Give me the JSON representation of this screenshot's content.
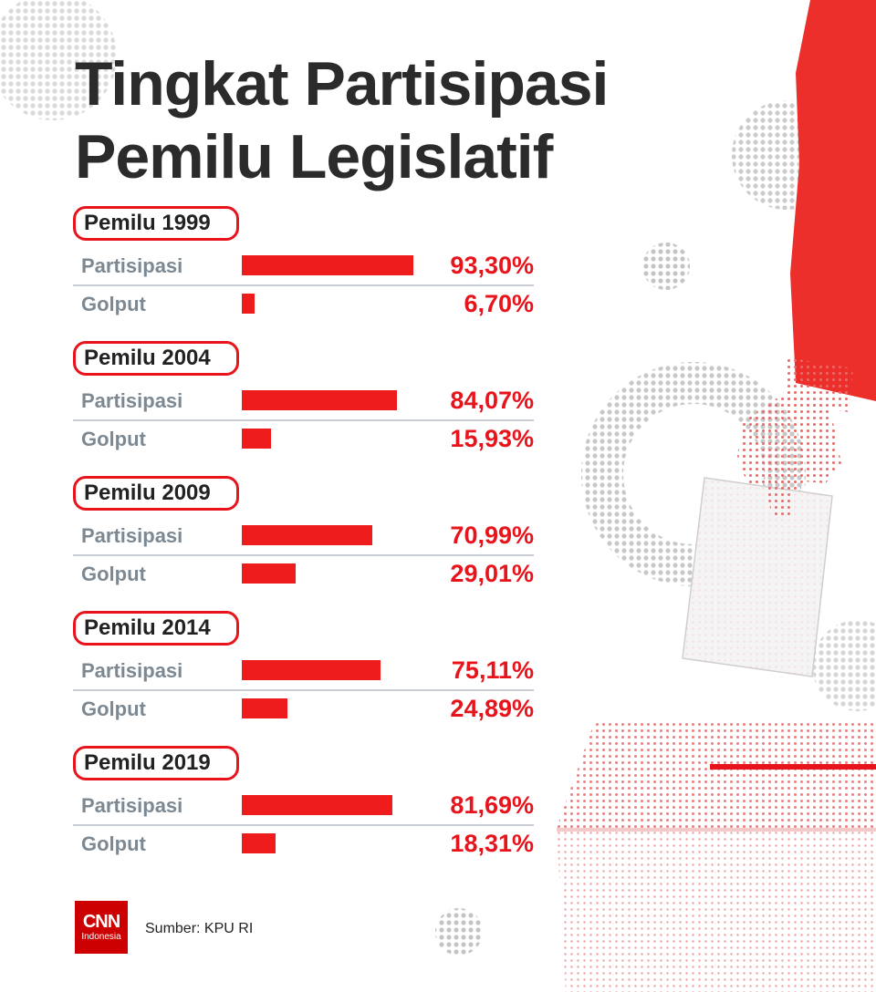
{
  "title": {
    "line1": "Tingkat Partisipasi",
    "line2": "Pemilu Legislatif"
  },
  "colors": {
    "accent": "#e8141c",
    "bar": "#ee1c1c",
    "title": "#2b2b2b",
    "row_label": "#7d8992",
    "divider": "#c7cdd2"
  },
  "labels": {
    "participation": "Partisipasi",
    "abstention": "Golput"
  },
  "chart_data": {
    "type": "bar",
    "orientation": "horizontal",
    "unit": "%",
    "series": [
      {
        "name": "Partisipasi",
        "values": [
          93.3,
          84.07,
          70.99,
          75.11,
          81.69
        ]
      },
      {
        "name": "Golput",
        "values": [
          6.7,
          15.93,
          29.01,
          24.89,
          18.31
        ]
      }
    ],
    "groups": [
      {
        "label": "Pemilu 1999",
        "rows": [
          {
            "label": "Partisipasi",
            "value": 93.3,
            "display": "93,30%"
          },
          {
            "label": "Golput",
            "value": 6.7,
            "display": "6,70%"
          }
        ]
      },
      {
        "label": "Pemilu 2004",
        "rows": [
          {
            "label": "Partisipasi",
            "value": 84.07,
            "display": "84,07%"
          },
          {
            "label": "Golput",
            "value": 15.93,
            "display": "15,93%"
          }
        ]
      },
      {
        "label": "Pemilu 2009",
        "rows": [
          {
            "label": "Partisipasi",
            "value": 70.99,
            "display": "70,99%"
          },
          {
            "label": "Golput",
            "value": 29.01,
            "display": "29,01%"
          }
        ]
      },
      {
        "label": "Pemilu 2014",
        "rows": [
          {
            "label": "Partisipasi",
            "value": 75.11,
            "display": "75,11%"
          },
          {
            "label": "Golput",
            "value": 24.89,
            "display": "24,89%"
          }
        ]
      },
      {
        "label": "Pemilu 2019",
        "rows": [
          {
            "label": "Partisipasi",
            "value": 81.69,
            "display": "81,69%"
          },
          {
            "label": "Golput",
            "value": 18.31,
            "display": "18,31%"
          }
        ]
      }
    ],
    "xlim": [
      0,
      100
    ],
    "grid": false,
    "legend": "none"
  },
  "footer": {
    "logo_text": "CNN",
    "logo_subtext": "Indonesia",
    "source": "Sumber: KPU RI"
  }
}
